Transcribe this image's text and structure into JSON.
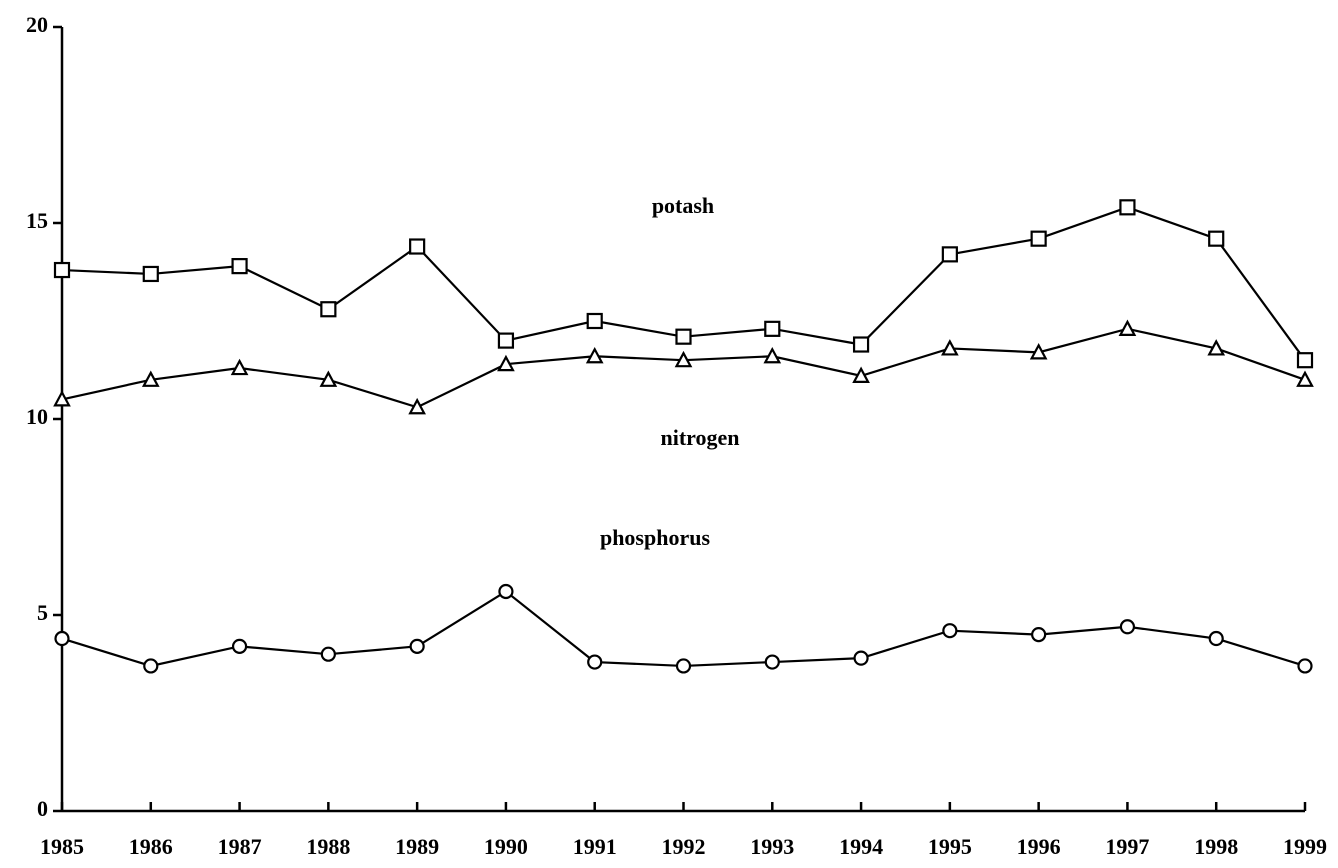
{
  "chart_data": {
    "type": "line",
    "x": [
      1985,
      1986,
      1987,
      1988,
      1989,
      1990,
      1991,
      1992,
      1993,
      1994,
      1995,
      1996,
      1997,
      1998,
      1999
    ],
    "xlim": [
      1985,
      1999
    ],
    "xticks": [
      1985,
      1986,
      1987,
      1988,
      1989,
      1990,
      1991,
      1992,
      1993,
      1994,
      1995,
      1996,
      1997,
      1998,
      1999
    ],
    "ylim": [
      0,
      20
    ],
    "yticks": [
      0,
      5,
      10,
      15,
      20
    ],
    "series": [
      {
        "name": "potash",
        "color": "#000000",
        "marker": "square",
        "values": [
          13.8,
          13.7,
          13.9,
          12.8,
          14.4,
          12.0,
          12.5,
          12.1,
          12.3,
          11.9,
          14.2,
          14.6,
          15.4,
          14.6,
          11.5
        ]
      },
      {
        "name": "nitrogen",
        "color": "#000000",
        "marker": "triangle",
        "values": [
          10.5,
          11.0,
          11.3,
          11.0,
          10.3,
          11.4,
          11.6,
          11.5,
          11.6,
          11.1,
          11.8,
          11.7,
          12.3,
          11.8,
          11.0
        ]
      },
      {
        "name": "phosphorus",
        "color": "#000000",
        "marker": "circle",
        "values": [
          4.4,
          3.7,
          4.2,
          4.0,
          4.2,
          5.6,
          3.8,
          3.7,
          3.8,
          3.9,
          4.6,
          4.5,
          4.7,
          4.4,
          3.7
        ]
      }
    ]
  }
}
